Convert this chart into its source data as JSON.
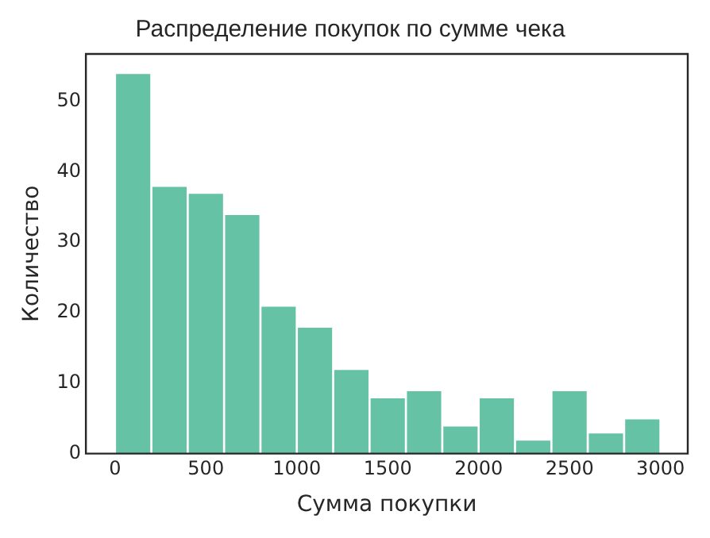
{
  "chart_data": {
    "type": "histogram",
    "title": "Распределение покупок по сумме чека",
    "xlabel": "Сумма покупки",
    "ylabel": "Количество",
    "bins": [
      0,
      200,
      400,
      600,
      800,
      1000,
      1200,
      1400,
      1600,
      1800,
      2000,
      2200,
      2400,
      2600,
      2800,
      3000
    ],
    "values": [
      54,
      38,
      37,
      34,
      21,
      18,
      12,
      8,
      9,
      4,
      8,
      2,
      9,
      3,
      5
    ],
    "color": "#66c2a5",
    "xlim": [
      -160,
      3150
    ],
    "xticks": [
      0,
      500,
      1000,
      1500,
      2000,
      2500,
      3000
    ],
    "ylim": [
      0,
      56.7
    ],
    "yticks": [
      0,
      10,
      20,
      30,
      40,
      50
    ],
    "grid": false,
    "legend": false
  }
}
